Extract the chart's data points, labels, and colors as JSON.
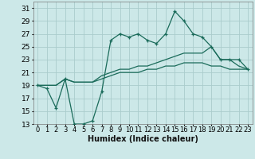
{
  "xlabel": "Humidex (Indice chaleur)",
  "background_color": "#cce8e8",
  "grid_color": "#aacccc",
  "line_color": "#1a6b5a",
  "xlim": [
    -0.5,
    23.5
  ],
  "ylim": [
    13,
    32
  ],
  "yticks": [
    13,
    15,
    17,
    19,
    21,
    23,
    25,
    27,
    29,
    31
  ],
  "xticks": [
    0,
    1,
    2,
    3,
    4,
    5,
    6,
    7,
    8,
    9,
    10,
    11,
    12,
    13,
    14,
    15,
    16,
    17,
    18,
    19,
    20,
    21,
    22,
    23
  ],
  "line1_x": [
    0,
    1,
    2,
    3,
    4,
    5,
    6,
    7,
    8,
    9,
    10,
    11,
    12,
    13,
    14,
    15,
    16,
    17,
    18,
    19,
    20,
    21,
    22,
    23
  ],
  "line1_y": [
    19,
    18.5,
    15.5,
    20,
    13,
    13,
    13.5,
    18,
    26,
    27,
    26.5,
    27,
    26,
    25.5,
    27,
    30.5,
    29,
    27,
    26.5,
    25,
    23,
    23,
    23,
    21.5
  ],
  "line2_x": [
    0,
    1,
    2,
    3,
    4,
    5,
    6,
    7,
    8,
    9,
    10,
    11,
    12,
    13,
    14,
    15,
    16,
    17,
    18,
    19,
    20,
    21,
    22,
    23
  ],
  "line2_y": [
    19,
    19,
    19,
    20,
    19.5,
    19.5,
    19.5,
    20.5,
    21,
    21.5,
    21.5,
    22,
    22,
    22.5,
    23,
    23.5,
    24,
    24,
    24,
    25,
    23,
    23,
    22,
    21.5
  ],
  "line3_x": [
    0,
    1,
    2,
    3,
    4,
    5,
    6,
    7,
    8,
    9,
    10,
    11,
    12,
    13,
    14,
    15,
    16,
    17,
    18,
    19,
    20,
    21,
    22,
    23
  ],
  "line3_y": [
    19,
    19,
    19,
    20,
    19.5,
    19.5,
    19.5,
    20,
    20.5,
    21,
    21,
    21,
    21.5,
    21.5,
    22,
    22,
    22.5,
    22.5,
    22.5,
    22,
    22,
    21.5,
    21.5,
    21.5
  ],
  "font_size_label": 7,
  "font_size_tick": 6.5
}
